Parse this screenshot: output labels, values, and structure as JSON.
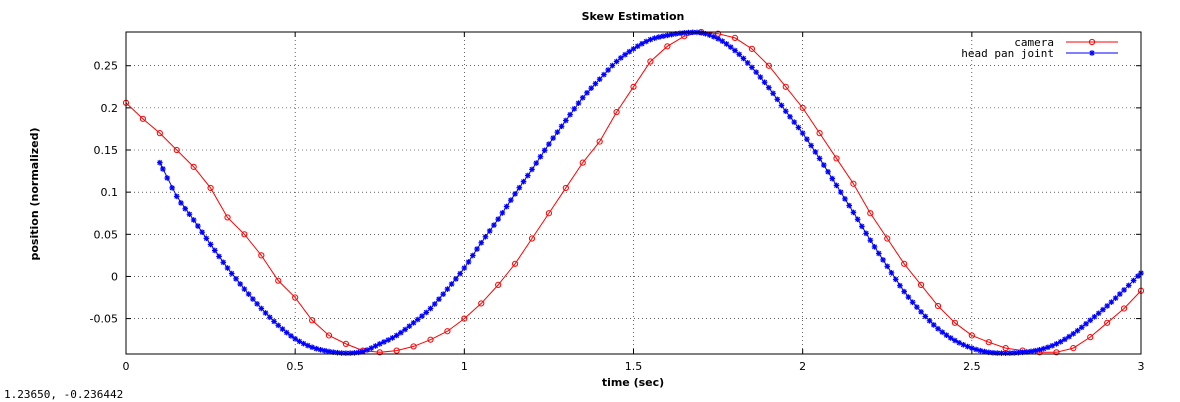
{
  "status_readout": "1.23650, -0.236442",
  "chart_data": {
    "type": "line",
    "title": "Skew Estimation",
    "xlabel": "time (sec)",
    "ylabel": "position (normalized)",
    "xlim": [
      0,
      3
    ],
    "ylim": [
      -0.092,
      0.29
    ],
    "grid": true,
    "legend_position": "top-right",
    "xticks": [
      {
        "value": 0,
        "label": "0"
      },
      {
        "value": 0.5,
        "label": "0.5"
      },
      {
        "value": 1,
        "label": "1"
      },
      {
        "value": 1.5,
        "label": "1.5"
      },
      {
        "value": 2,
        "label": "2"
      },
      {
        "value": 2.5,
        "label": "2.5"
      },
      {
        "value": 3,
        "label": "3"
      }
    ],
    "yticks": [
      {
        "value": -0.05,
        "label": "-0.05"
      },
      {
        "value": 0,
        "label": "0"
      },
      {
        "value": 0.05,
        "label": "0.05"
      },
      {
        "value": 0.1,
        "label": "0.1"
      },
      {
        "value": 0.15,
        "label": "0.15"
      },
      {
        "value": 0.2,
        "label": "0.2"
      },
      {
        "value": 0.25,
        "label": "0.25"
      }
    ],
    "series": [
      {
        "name": "camera",
        "color": "#ff0000",
        "marker": "circle",
        "x": [
          0.0,
          0.05,
          0.1,
          0.15,
          0.2,
          0.25,
          0.3,
          0.35,
          0.4,
          0.45,
          0.5,
          0.55,
          0.6,
          0.65,
          0.7,
          0.75,
          0.8,
          0.85,
          0.9,
          0.95,
          1.0,
          1.05,
          1.1,
          1.15,
          1.2,
          1.25,
          1.3,
          1.35,
          1.4,
          1.45,
          1.5,
          1.55,
          1.6,
          1.65,
          1.7,
          1.75,
          1.8,
          1.85,
          1.9,
          1.95,
          2.0,
          2.05,
          2.1,
          2.15,
          2.2,
          2.25,
          2.3,
          2.35,
          2.4,
          2.45,
          2.5,
          2.55,
          2.6,
          2.65,
          2.7,
          2.75,
          2.8,
          2.85,
          2.9,
          2.95,
          3.0
        ],
        "y": [
          0.206,
          0.187,
          0.17,
          0.15,
          0.13,
          0.105,
          0.07,
          0.05,
          0.025,
          -0.005,
          -0.025,
          -0.052,
          -0.07,
          -0.08,
          -0.088,
          -0.09,
          -0.088,
          -0.083,
          -0.075,
          -0.065,
          -0.05,
          -0.032,
          -0.01,
          0.015,
          0.045,
          0.075,
          0.105,
          0.135,
          0.16,
          0.195,
          0.225,
          0.255,
          0.273,
          0.285,
          0.29,
          0.288,
          0.283,
          0.27,
          0.25,
          0.225,
          0.2,
          0.17,
          0.14,
          0.11,
          0.075,
          0.045,
          0.015,
          -0.01,
          -0.035,
          -0.055,
          -0.07,
          -0.078,
          -0.085,
          -0.088,
          -0.09,
          -0.09,
          -0.085,
          -0.072,
          -0.055,
          -0.038,
          -0.017
        ]
      },
      {
        "name": "head pan joint",
        "color": "#0000ff",
        "marker": "star",
        "x": [
          0.1,
          0.15,
          0.2,
          0.25,
          0.3,
          0.35,
          0.4,
          0.45,
          0.5,
          0.55,
          0.6,
          0.65,
          0.7,
          0.75,
          0.8,
          0.85,
          0.9,
          0.95,
          1.0,
          1.05,
          1.1,
          1.15,
          1.2,
          1.25,
          1.3,
          1.35,
          1.4,
          1.45,
          1.5,
          1.55,
          1.6,
          1.65,
          1.7,
          1.75,
          1.8,
          1.85,
          1.9,
          1.95,
          2.0,
          2.05,
          2.1,
          2.15,
          2.2,
          2.25,
          2.3,
          2.35,
          2.4,
          2.45,
          2.5,
          2.55,
          2.6,
          2.65,
          2.7,
          2.75,
          2.8,
          2.85,
          2.9,
          2.95,
          3.0
        ],
        "y": [
          0.135,
          0.095,
          0.067,
          0.038,
          0.01,
          -0.015,
          -0.038,
          -0.058,
          -0.074,
          -0.084,
          -0.089,
          -0.091,
          -0.089,
          -0.08,
          -0.07,
          -0.055,
          -0.038,
          -0.015,
          0.01,
          0.04,
          0.068,
          0.098,
          0.127,
          0.157,
          0.185,
          0.212,
          0.234,
          0.255,
          0.27,
          0.281,
          0.286,
          0.289,
          0.289,
          0.282,
          0.268,
          0.248,
          0.224,
          0.196,
          0.17,
          0.14,
          0.108,
          0.076,
          0.043,
          0.012,
          -0.018,
          -0.042,
          -0.062,
          -0.076,
          -0.085,
          -0.09,
          -0.091,
          -0.09,
          -0.087,
          -0.08,
          -0.068,
          -0.052,
          -0.035,
          -0.016,
          0.004
        ]
      }
    ]
  }
}
